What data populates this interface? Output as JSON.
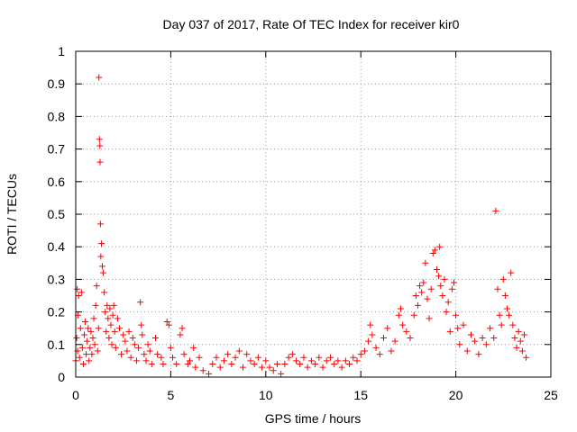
{
  "chart_data": {
    "type": "scatter",
    "title": "Day 037 of 2017, Rate Of TEC Index for receiver kir0",
    "xlabel": "GPS time / hours",
    "ylabel": "ROTI / TECUs",
    "xlim": [
      0,
      25
    ],
    "ylim": [
      0,
      1
    ],
    "x_ticks": [
      "0",
      "5",
      "10",
      "15",
      "20",
      "25"
    ],
    "y_ticks": [
      "0",
      "0.1",
      "0.2",
      "0.3",
      "0.4",
      "0.5",
      "0.6",
      "0.7",
      "0.8",
      "0.9",
      "1"
    ],
    "grid": true,
    "marker": "+",
    "color": "#ff0000",
    "series": [
      {
        "points": [
          [
            0.0,
            0.05
          ],
          [
            0.05,
            0.12
          ],
          [
            0.08,
            0.27
          ],
          [
            0.1,
            0.08
          ],
          [
            0.12,
            0.19
          ],
          [
            0.15,
            0.25
          ],
          [
            0.2,
            0.06
          ],
          [
            0.25,
            0.15
          ],
          [
            0.3,
            0.26
          ],
          [
            0.35,
            0.09
          ],
          [
            0.4,
            0.04
          ],
          [
            0.45,
            0.13
          ],
          [
            0.5,
            0.17
          ],
          [
            0.55,
            0.07
          ],
          [
            0.6,
            0.11
          ],
          [
            0.65,
            0.15
          ],
          [
            0.7,
            0.05
          ],
          [
            0.75,
            0.09
          ],
          [
            0.8,
            0.14
          ],
          [
            0.85,
            0.07
          ],
          [
            0.9,
            0.12
          ],
          [
            0.95,
            0.18
          ],
          [
            1.0,
            0.1
          ],
          [
            1.05,
            0.22
          ],
          [
            1.1,
            0.28
          ],
          [
            1.15,
            0.08
          ],
          [
            1.2,
            0.15
          ],
          [
            1.22,
            0.92
          ],
          [
            1.25,
            0.73
          ],
          [
            1.27,
            0.71
          ],
          [
            1.28,
            0.66
          ],
          [
            1.3,
            0.47
          ],
          [
            1.32,
            0.37
          ],
          [
            1.35,
            0.41
          ],
          [
            1.4,
            0.34
          ],
          [
            1.45,
            0.32
          ],
          [
            1.5,
            0.26
          ],
          [
            1.55,
            0.2
          ],
          [
            1.6,
            0.14
          ],
          [
            1.65,
            0.22
          ],
          [
            1.7,
            0.18
          ],
          [
            1.75,
            0.12
          ],
          [
            1.8,
            0.21
          ],
          [
            1.85,
            0.16
          ],
          [
            1.9,
            0.1
          ],
          [
            1.95,
            0.19
          ],
          [
            2.0,
            0.22
          ],
          [
            2.05,
            0.14
          ],
          [
            2.1,
            0.09
          ],
          [
            2.2,
            0.18
          ],
          [
            2.3,
            0.15
          ],
          [
            2.4,
            0.07
          ],
          [
            2.5,
            0.13
          ],
          [
            2.6,
            0.11
          ],
          [
            2.7,
            0.08
          ],
          [
            2.8,
            0.14
          ],
          [
            2.9,
            0.06
          ],
          [
            3.0,
            0.12
          ],
          [
            3.1,
            0.1
          ],
          [
            3.2,
            0.05
          ],
          [
            3.3,
            0.09
          ],
          [
            3.4,
            0.23
          ],
          [
            3.45,
            0.16
          ],
          [
            3.5,
            0.13
          ],
          [
            3.6,
            0.07
          ],
          [
            3.7,
            0.05
          ],
          [
            3.8,
            0.1
          ],
          [
            3.9,
            0.08
          ],
          [
            4.0,
            0.04
          ],
          [
            4.2,
            0.12
          ],
          [
            4.3,
            0.07
          ],
          [
            4.5,
            0.06
          ],
          [
            4.6,
            0.04
          ],
          [
            4.8,
            0.17
          ],
          [
            4.9,
            0.16
          ],
          [
            5.0,
            0.09
          ],
          [
            5.1,
            0.06
          ],
          [
            5.3,
            0.04
          ],
          [
            5.5,
            0.13
          ],
          [
            5.6,
            0.15
          ],
          [
            5.7,
            0.07
          ],
          [
            5.9,
            0.04
          ],
          [
            6.0,
            0.05
          ],
          [
            6.2,
            0.09
          ],
          [
            6.3,
            0.03
          ],
          [
            6.5,
            0.06
          ],
          [
            6.7,
            0.02
          ],
          [
            7.0,
            0.01
          ],
          [
            7.2,
            0.04
          ],
          [
            7.4,
            0.06
          ],
          [
            7.6,
            0.03
          ],
          [
            7.8,
            0.05
          ],
          [
            8.0,
            0.07
          ],
          [
            8.2,
            0.04
          ],
          [
            8.4,
            0.06
          ],
          [
            8.6,
            0.08
          ],
          [
            8.8,
            0.03
          ],
          [
            9.0,
            0.07
          ],
          [
            9.2,
            0.05
          ],
          [
            9.4,
            0.04
          ],
          [
            9.6,
            0.06
          ],
          [
            9.8,
            0.03
          ],
          [
            10.0,
            0.05
          ],
          [
            10.2,
            0.03
          ],
          [
            10.4,
            0.02
          ],
          [
            10.6,
            0.04
          ],
          [
            10.8,
            0.01
          ],
          [
            11.0,
            0.04
          ],
          [
            11.2,
            0.06
          ],
          [
            11.4,
            0.07
          ],
          [
            11.6,
            0.05
          ],
          [
            11.8,
            0.04
          ],
          [
            12.0,
            0.06
          ],
          [
            12.2,
            0.03
          ],
          [
            12.4,
            0.05
          ],
          [
            12.6,
            0.04
          ],
          [
            12.8,
            0.06
          ],
          [
            13.0,
            0.03
          ],
          [
            13.2,
            0.05
          ],
          [
            13.4,
            0.06
          ],
          [
            13.6,
            0.04
          ],
          [
            13.8,
            0.05
          ],
          [
            14.0,
            0.03
          ],
          [
            14.2,
            0.05
          ],
          [
            14.4,
            0.04
          ],
          [
            14.6,
            0.06
          ],
          [
            14.8,
            0.05
          ],
          [
            15.0,
            0.07
          ],
          [
            15.2,
            0.08
          ],
          [
            15.4,
            0.11
          ],
          [
            15.5,
            0.16
          ],
          [
            15.6,
            0.13
          ],
          [
            15.8,
            0.09
          ],
          [
            16.0,
            0.07
          ],
          [
            16.2,
            0.12
          ],
          [
            16.4,
            0.15
          ],
          [
            16.6,
            0.08
          ],
          [
            16.8,
            0.11
          ],
          [
            17.0,
            0.19
          ],
          [
            17.1,
            0.21
          ],
          [
            17.2,
            0.16
          ],
          [
            17.4,
            0.14
          ],
          [
            17.6,
            0.12
          ],
          [
            17.8,
            0.19
          ],
          [
            17.9,
            0.25
          ],
          [
            18.0,
            0.22
          ],
          [
            18.1,
            0.28
          ],
          [
            18.2,
            0.26
          ],
          [
            18.3,
            0.29
          ],
          [
            18.4,
            0.35
          ],
          [
            18.5,
            0.24
          ],
          [
            18.6,
            0.18
          ],
          [
            18.7,
            0.27
          ],
          [
            18.8,
            0.38
          ],
          [
            18.9,
            0.39
          ],
          [
            19.0,
            0.33
          ],
          [
            19.1,
            0.31
          ],
          [
            19.15,
            0.4
          ],
          [
            19.2,
            0.28
          ],
          [
            19.3,
            0.25
          ],
          [
            19.4,
            0.3
          ],
          [
            19.5,
            0.2
          ],
          [
            19.6,
            0.23
          ],
          [
            19.7,
            0.14
          ],
          [
            19.8,
            0.27
          ],
          [
            19.9,
            0.29
          ],
          [
            20.0,
            0.19
          ],
          [
            20.1,
            0.15
          ],
          [
            20.2,
            0.1
          ],
          [
            20.4,
            0.16
          ],
          [
            20.6,
            0.08
          ],
          [
            20.8,
            0.13
          ],
          [
            21.0,
            0.11
          ],
          [
            21.2,
            0.07
          ],
          [
            21.4,
            0.12
          ],
          [
            21.6,
            0.1
          ],
          [
            21.8,
            0.15
          ],
          [
            22.0,
            0.12
          ],
          [
            22.1,
            0.51
          ],
          [
            22.2,
            0.27
          ],
          [
            22.3,
            0.19
          ],
          [
            22.4,
            0.16
          ],
          [
            22.5,
            0.3
          ],
          [
            22.6,
            0.25
          ],
          [
            22.7,
            0.21
          ],
          [
            22.8,
            0.19
          ],
          [
            22.9,
            0.32
          ],
          [
            23.0,
            0.16
          ],
          [
            23.1,
            0.12
          ],
          [
            23.2,
            0.09
          ],
          [
            23.3,
            0.14
          ],
          [
            23.4,
            0.11
          ],
          [
            23.5,
            0.08
          ],
          [
            23.6,
            0.13
          ],
          [
            23.7,
            0.06
          ]
        ]
      }
    ]
  }
}
